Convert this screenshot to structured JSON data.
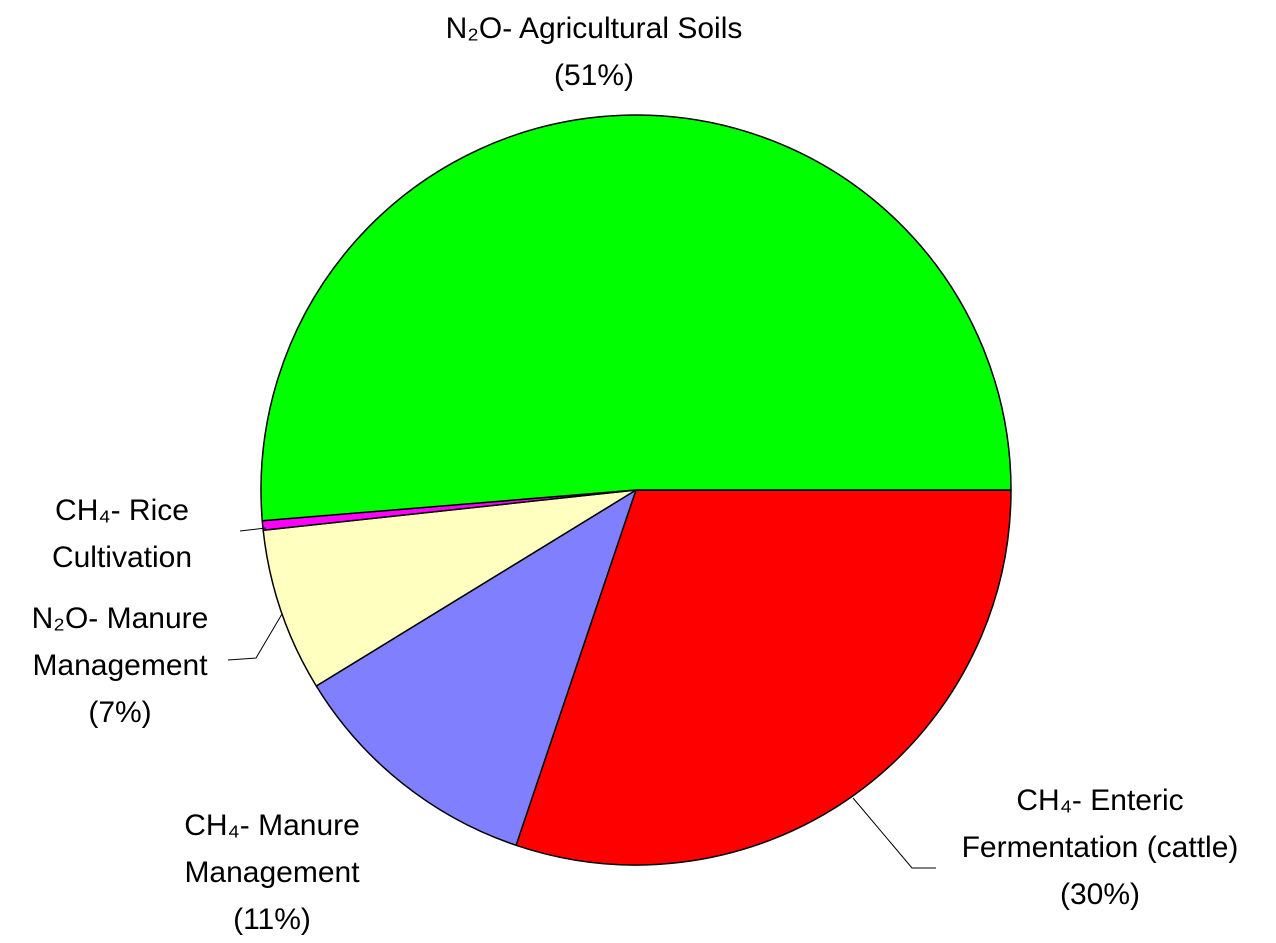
{
  "chart_data": {
    "type": "pie",
    "categories": [
      "CH₄- Enteric Fermentation (cattle) (30%)",
      "CH₄- Manure Management (11%)",
      "N₂O- Manure Management (7%)",
      "CH₄- Rice Cultivation",
      "N₂O- Agricultural Soils (51%)"
    ],
    "values": [
      30,
      11,
      7,
      0.4,
      51
    ],
    "colors": [
      "#ff0000",
      "#8080ff",
      "#ffffc0",
      "#ff00ff",
      "#00ff00"
    ]
  }
}
